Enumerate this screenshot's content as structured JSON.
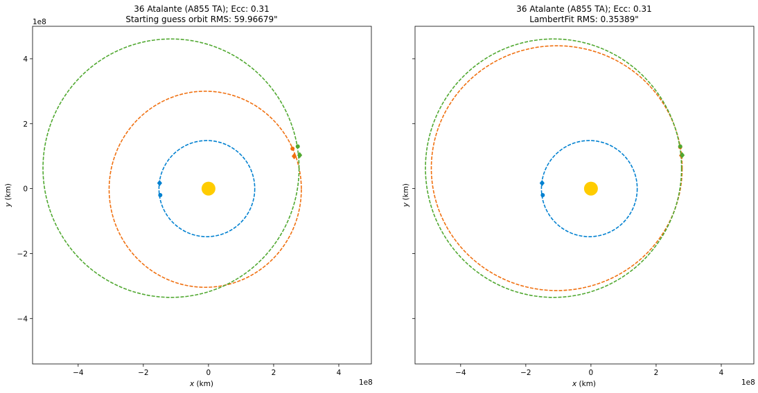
{
  "chart_data": [
    {
      "type": "line",
      "title": "36 Atalante (A855 TA); Ecc: 0.31",
      "subtitle": "Starting guess orbit RMS: 59.96679\"",
      "xlabel": "x (km)",
      "ylabel": "y (km)",
      "x_offset_label": "1e8",
      "y_offset_label": "1e8",
      "xlim": [
        -5.4,
        5.0
      ],
      "ylim": [
        -5.4,
        5.0
      ],
      "x_ticks": [
        -4,
        -2,
        0,
        2,
        4
      ],
      "x_tick_labels": [
        "−4",
        "−2",
        "0",
        "2",
        "4"
      ],
      "y_ticks": [
        -4,
        -2,
        0,
        2,
        4
      ],
      "y_tick_labels": [
        "−4",
        "−2",
        "0",
        "2",
        "4"
      ],
      "show_y_tick_labels": true,
      "grid": false,
      "sun": {
        "x": 0,
        "y": 0,
        "color": "#FFCC00"
      },
      "series": [
        {
          "color": "#0080D0",
          "orbit": {
            "cx": -0.05,
            "cy": 0.0,
            "rx": 1.47,
            "ry": 1.48
          },
          "points": [
            {
              "x": -1.5,
              "y": 0.17,
              "marker": "diamond"
            },
            {
              "x": -1.48,
              "y": -0.2,
              "marker": "circle"
            }
          ]
        },
        {
          "color": "#F07010",
          "orbit": {
            "cx": -0.1,
            "cy": -0.02,
            "rx": 2.95,
            "ry": 3.02
          },
          "points": [
            {
              "x": 2.63,
              "y": 1.0,
              "marker": "diamond"
            },
            {
              "x": 2.58,
              "y": 1.23,
              "marker": "circle"
            }
          ]
        },
        {
          "color": "#50A830",
          "orbit": {
            "cx": -1.15,
            "cy": 0.63,
            "rx": 3.93,
            "ry": 3.98
          },
          "points": [
            {
              "x": 2.8,
              "y": 1.03,
              "marker": "diamond"
            },
            {
              "x": 2.74,
              "y": 1.3,
              "marker": "circle"
            }
          ]
        }
      ]
    },
    {
      "type": "line",
      "title": "36 Atalante (A855 TA); Ecc: 0.31",
      "subtitle": "LambertFit RMS: 0.35389\"",
      "xlabel": "x (km)",
      "ylabel": "y (km)",
      "x_offset_label": "1e8",
      "y_offset_label": "",
      "xlim": [
        -5.4,
        5.0
      ],
      "ylim": [
        -5.4,
        5.0
      ],
      "x_ticks": [
        -4,
        -2,
        0,
        2,
        4
      ],
      "x_tick_labels": [
        "−4",
        "−2",
        "0",
        "2",
        "4"
      ],
      "y_ticks": [
        -4,
        -2,
        0,
        2,
        4
      ],
      "y_tick_labels": [],
      "show_y_tick_labels": false,
      "grid": false,
      "sun": {
        "x": 0,
        "y": 0,
        "color": "#FFCC00"
      },
      "series": [
        {
          "color": "#0080D0",
          "orbit": {
            "cx": -0.05,
            "cy": 0.0,
            "rx": 1.47,
            "ry": 1.48
          },
          "points": [
            {
              "x": -1.5,
              "y": 0.17,
              "marker": "diamond"
            },
            {
              "x": -1.48,
              "y": -0.2,
              "marker": "circle"
            }
          ]
        },
        {
          "color": "#F07010",
          "orbit": {
            "cx": -1.05,
            "cy": 0.63,
            "rx": 3.85,
            "ry": 3.77
          },
          "points": [
            {
              "x": 2.78,
              "y": 1.02,
              "marker": "diamond"
            },
            {
              "x": 2.74,
              "y": 1.28,
              "marker": "circle"
            }
          ]
        },
        {
          "color": "#50A830",
          "orbit": {
            "cx": -1.15,
            "cy": 0.63,
            "rx": 3.93,
            "ry": 3.98
          },
          "points": [
            {
              "x": 2.8,
              "y": 1.03,
              "marker": "diamond"
            },
            {
              "x": 2.74,
              "y": 1.3,
              "marker": "circle"
            }
          ]
        }
      ]
    }
  ]
}
